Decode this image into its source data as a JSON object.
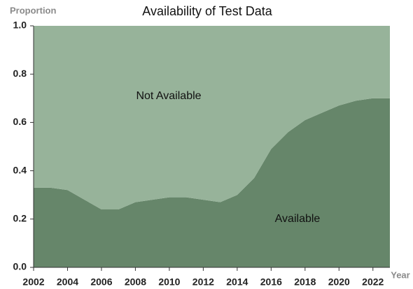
{
  "chart_data": {
    "type": "stacked_area",
    "title": "Availability of Test Data",
    "y_label": "Proportion",
    "x_label": "Year",
    "x": [
      2002,
      2003,
      2004,
      2005,
      2006,
      2007,
      2008,
      2009,
      2010,
      2011,
      2012,
      2013,
      2014,
      2015,
      2016,
      2017,
      2018,
      2019,
      2020,
      2021,
      2022,
      2023
    ],
    "series": [
      {
        "name": "Available",
        "color": "#66866a",
        "values": [
          0.33,
          0.33,
          0.32,
          0.28,
          0.24,
          0.24,
          0.27,
          0.28,
          0.29,
          0.29,
          0.28,
          0.27,
          0.3,
          0.37,
          0.49,
          0.56,
          0.61,
          0.64,
          0.67,
          0.69,
          0.7,
          0.7
        ]
      },
      {
        "name": "Not Available",
        "color": "#97b39a",
        "values": [
          0.67,
          0.67,
          0.68,
          0.72,
          0.76,
          0.76,
          0.73,
          0.72,
          0.71,
          0.71,
          0.72,
          0.73,
          0.7,
          0.63,
          0.51,
          0.44,
          0.39,
          0.36,
          0.33,
          0.31,
          0.3,
          0.3
        ]
      }
    ],
    "xlim": [
      2002,
      2023
    ],
    "xticks": [
      2002,
      2004,
      2006,
      2008,
      2010,
      2012,
      2014,
      2016,
      2018,
      2020,
      2022
    ],
    "ylim": [
      0,
      1
    ],
    "yticks": [
      {
        "value": 0,
        "label": "0.0"
      },
      0.2,
      0.4,
      0.6,
      0.8,
      {
        "value": 1,
        "label": "1.0"
      }
    ]
  }
}
